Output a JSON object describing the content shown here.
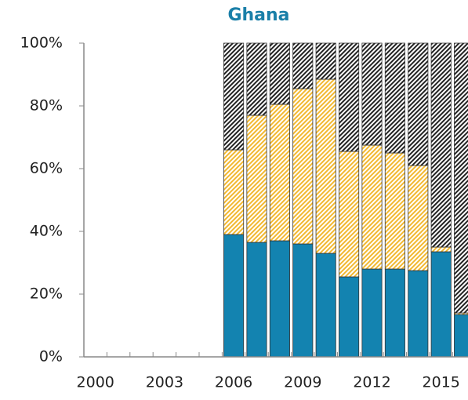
{
  "chart_data": {
    "type": "stacked_bar",
    "title": "Ghana",
    "categories": [
      "2000",
      null,
      null,
      "2003",
      null,
      null,
      "2006",
      null,
      null,
      "2009",
      null,
      null,
      "2012",
      null,
      null,
      "2015",
      null
    ],
    "series": [
      {
        "color": "#1383b0",
        "pattern": "solid",
        "values": [
          null,
          null,
          null,
          null,
          null,
          null,
          39,
          36.5,
          37,
          36,
          33,
          25.5,
          28,
          28,
          27.5,
          33.5,
          13.5
        ]
      },
      {
        "color": "#f2b830",
        "pattern": "hatch",
        "values": [
          null,
          null,
          null,
          null,
          null,
          null,
          27,
          40.5,
          43.5,
          49.5,
          55.5,
          40,
          39.5,
          37,
          33.5,
          1.5,
          0.5
        ]
      },
      {
        "color": "#222222",
        "pattern": "hatch",
        "values": [
          null,
          null,
          null,
          null,
          null,
          null,
          34,
          23,
          19.5,
          14.5,
          11.5,
          34.5,
          32.5,
          35,
          39,
          65,
          86
        ]
      }
    ],
    "ylim": [
      0,
      100
    ],
    "yticks": [
      {
        "value": 0,
        "label": "0%"
      },
      {
        "value": 20,
        "label": "20%"
      },
      {
        "value": 40,
        "label": "40%"
      },
      {
        "value": 60,
        "label": "60%"
      },
      {
        "value": 80,
        "label": "80%"
      },
      {
        "value": 100,
        "label": "100%"
      }
    ],
    "grid": false
  }
}
